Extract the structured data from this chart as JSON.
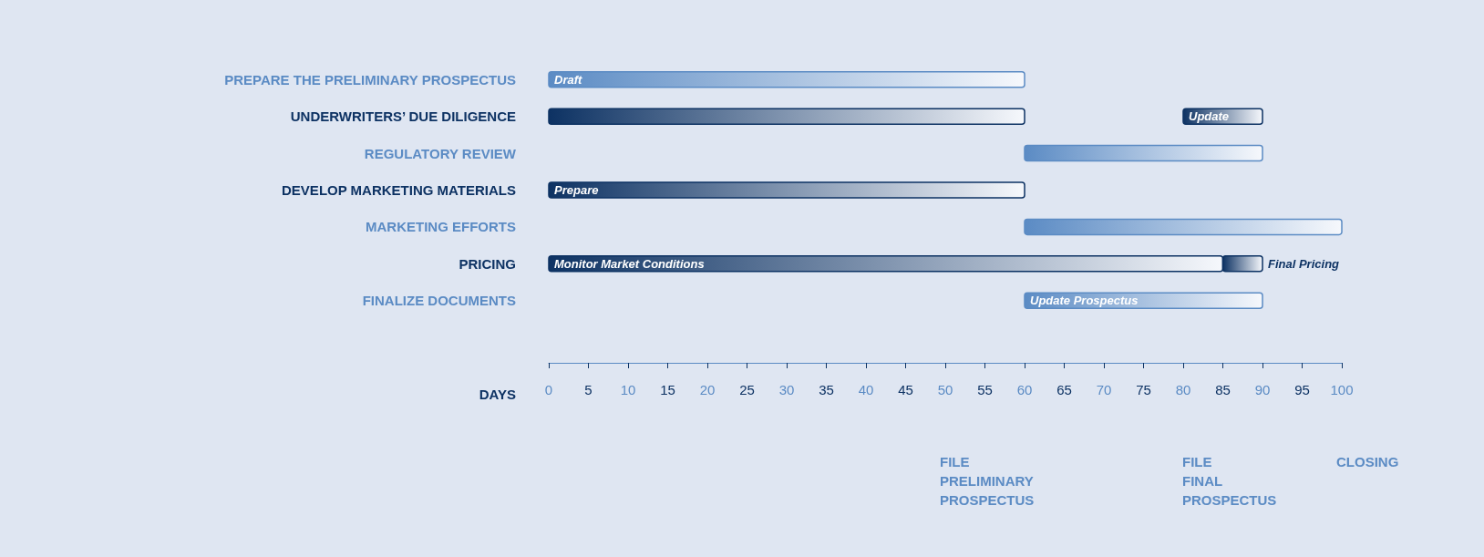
{
  "chart_data": {
    "type": "bar",
    "orientation": "horizontal",
    "categories": [
      "PREPARE THE PRELIMINARY PROSPECTUS",
      "UNDERWRITERS’ DUE DILIGENCE",
      "REGULATORY REVIEW",
      "DEVELOP MARKETING MATERIALS",
      "MARKETING EFFORTS",
      "PRICING",
      "FINALIZE DOCUMENTS"
    ],
    "series": [
      {
        "base": [
          0,
          0,
          60,
          0,
          60,
          0,
          60
        ],
        "values": [
          60,
          60,
          30,
          60,
          40,
          85,
          30
        ],
        "colors": [
          "#5b8bc4",
          "#0d3263",
          "#5b8bc4",
          "#0d3263",
          "#5b8bc4",
          "#0d3263",
          "#5b8bc4"
        ]
      },
      {
        "base": [
          null,
          80,
          null,
          null,
          null,
          85,
          null
        ],
        "values": [
          null,
          10,
          null,
          null,
          null,
          5,
          null
        ],
        "color": "#0d3263"
      }
    ],
    "xlabel": "DAYS",
    "xlim": [
      0,
      100
    ],
    "xticks": [
      0,
      5,
      10,
      15,
      20,
      25,
      30,
      35,
      40,
      45,
      50,
      55,
      60,
      65,
      70,
      75,
      80,
      85,
      90,
      95,
      100
    ],
    "annotations": [
      {
        "text": "Draft",
        "x": 0,
        "y": "PREPARE THE PRELIMINARY PROSPECTUS"
      },
      {
        "text": "Update",
        "x": 80,
        "y": "UNDERWRITERS’ DUE DILIGENCE"
      },
      {
        "text": "Prepare",
        "x": 0,
        "y": "DEVELOP MARKETING MATERIALS"
      },
      {
        "text": "Monitor Market Conditions",
        "x": 0,
        "y": "PRICING"
      },
      {
        "text": "Final Pricing",
        "x": 90,
        "y": "PRICING"
      },
      {
        "text": "Update Prospectus",
        "x": 60,
        "y": "FINALIZE DOCUMENTS"
      },
      "FILE\nPRELIMINARY\nPROSPECTUS",
      "FILE\nFINAL\nPROSPECTUS",
      "CLOSING"
    ],
    "grid": false
  }
}
